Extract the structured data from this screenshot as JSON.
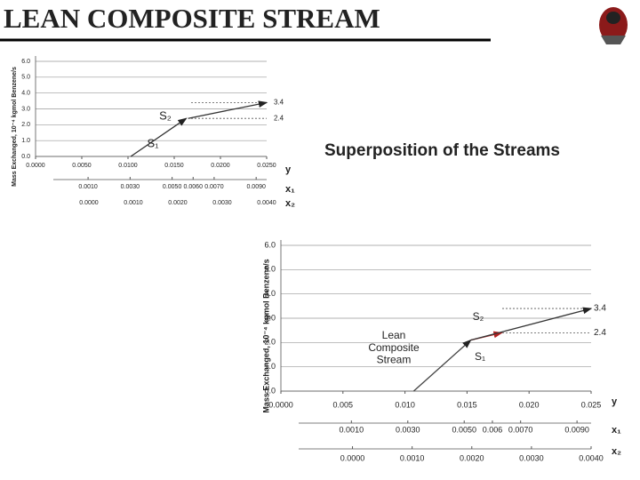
{
  "slide": {
    "title": "LEAN COMPOSITE STREAM",
    "heading": "Superposition of the Streams"
  },
  "chart_data": [
    {
      "type": "line",
      "ylabel": "Mass Exchanged, 10⁻⁴ kgmol Benzene/s",
      "xlabel": "y",
      "xlim": [
        0,
        0.025
      ],
      "xticks": [
        {
          "value": 0,
          "label": "0.0000"
        },
        {
          "value": 0.005,
          "label": "0.0050"
        },
        {
          "value": 0.01,
          "label": "0.0100"
        },
        {
          "value": 0.015,
          "label": "0.0150"
        },
        {
          "value": 0.02,
          "label": "0.0200"
        },
        {
          "value": 0.025,
          "label": "0.0250"
        }
      ],
      "ylim": [
        0,
        6
      ],
      "yticks": [
        {
          "value": 0,
          "label": "0.0"
        },
        {
          "value": 1,
          "label": "1.0"
        },
        {
          "value": 2,
          "label": "2.0"
        },
        {
          "value": 3,
          "label": "3.0"
        },
        {
          "value": 4,
          "label": "4.0"
        },
        {
          "value": 5,
          "label": "5.0"
        },
        {
          "value": 6,
          "label": "6.0"
        }
      ],
      "grid": true,
      "secondary_axes": [
        {
          "label": "x₁",
          "lim": [
            -0.0015,
            0.0095
          ],
          "ticks": [
            {
              "value": 0.001,
              "label": "0.0010"
            },
            {
              "value": 0.003,
              "label": "0.0030"
            },
            {
              "value": 0.005,
              "label": "0.0050"
            },
            {
              "value": 0.006,
              "label": "0.0060"
            },
            {
              "value": 0.007,
              "label": "0.0070"
            },
            {
              "value": 0.009,
              "label": "0.0090"
            }
          ]
        },
        {
          "label": "x₂",
          "lim": [
            -0.0012,
            0.004
          ],
          "ticks": [
            {
              "value": 0,
              "label": "0.0000"
            },
            {
              "value": 0.001,
              "label": "0.0010"
            },
            {
              "value": 0.002,
              "label": "0.0020"
            },
            {
              "value": 0.003,
              "label": "0.0030"
            },
            {
              "value": 0.004,
              "label": "0.0040"
            }
          ]
        }
      ],
      "reference_lines": [
        3.4,
        2.4
      ],
      "series": [
        {
          "name": "S₁",
          "color": "#333333",
          "x": [
            0.0103,
            0.0163
          ],
          "values": [
            0,
            2.4
          ]
        },
        {
          "name": "S₂",
          "color": "#333333",
          "x": [
            0.0165,
            0.025
          ],
          "values": [
            2.4,
            3.4
          ]
        }
      ]
    },
    {
      "type": "line",
      "ylabel": "Mass Exchanged, 10⁻⁴ kgmol Benzene/s",
      "xlabel": "y",
      "xlim": [
        0,
        0.025
      ],
      "xticks": [
        {
          "value": 0,
          "label": "0.0000"
        },
        {
          "value": 0.005,
          "label": "0.005"
        },
        {
          "value": 0.01,
          "label": "0.010"
        },
        {
          "value": 0.015,
          "label": "0.015"
        },
        {
          "value": 0.02,
          "label": "0.020"
        },
        {
          "value": 0.025,
          "label": "0.025"
        }
      ],
      "ylim": [
        0,
        6
      ],
      "yticks": [
        {
          "value": 0,
          "label": "0.0"
        },
        {
          "value": 1,
          "label": "1.0"
        },
        {
          "value": 2,
          "label": "2.0"
        },
        {
          "value": 3,
          "label": "3.0"
        },
        {
          "value": 4,
          "label": "4.0"
        },
        {
          "value": 5,
          "label": "5.0"
        },
        {
          "value": 6,
          "label": "6.0"
        }
      ],
      "grid": true,
      "secondary_axes": [
        {
          "label": "x₁",
          "lim": [
            -0.0015,
            0.0095
          ],
          "ticks": [
            {
              "value": 0.001,
              "label": "0.0010"
            },
            {
              "value": 0.003,
              "label": "0.0030"
            },
            {
              "value": 0.005,
              "label": "0.0050"
            },
            {
              "value": 0.006,
              "label": "0.006"
            },
            {
              "value": 0.007,
              "label": "0.0070"
            },
            {
              "value": 0.009,
              "label": "0.0090"
            }
          ]
        },
        {
          "label": "x₂",
          "lim": [
            -0.0012,
            0.004
          ],
          "ticks": [
            {
              "value": 0,
              "label": "0.0000"
            },
            {
              "value": 0.001,
              "label": "0.0010"
            },
            {
              "value": 0.002,
              "label": "0.0020"
            },
            {
              "value": 0.003,
              "label": "0.0030"
            },
            {
              "value": 0.004,
              "label": "0.0040"
            }
          ]
        }
      ],
      "reference_lines": [
        3.4,
        2.4
      ],
      "series": [
        {
          "name": "Lean Composite Stream",
          "color": "#444444",
          "x": [
            0.0107,
            0.0153
          ],
          "values": [
            0,
            2.1
          ]
        },
        {
          "name": "S₁",
          "color": "#b22222",
          "x": [
            0.0153,
            0.0178
          ],
          "values": [
            2.1,
            2.4
          ]
        },
        {
          "name": "S₂",
          "color": "#333333",
          "x": [
            0.0153,
            0.025
          ],
          "values": [
            2.1,
            3.4
          ]
        }
      ]
    }
  ]
}
